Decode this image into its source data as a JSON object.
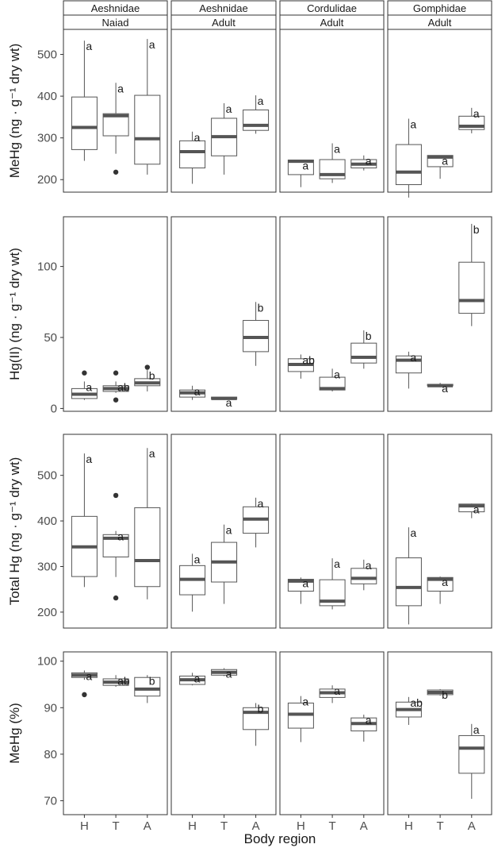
{
  "chart_data": {
    "type": "boxplot",
    "xlabel": "Body region",
    "x_categories": [
      "H",
      "T",
      "A"
    ],
    "facets": [
      {
        "strip_top": "Aeshnidae",
        "strip_bottom": "Naiad"
      },
      {
        "strip_top": "Aeshnidae",
        "strip_bottom": "Adult"
      },
      {
        "strip_top": "Cordulidae",
        "strip_bottom": "Adult"
      },
      {
        "strip_top": "Gomphidae",
        "strip_bottom": "Adult"
      }
    ],
    "rows": [
      {
        "ylabel": "MeHg (ng · g⁻¹ dry wt)",
        "ylim": [
          170,
          560
        ],
        "yticks": [
          200,
          300,
          400,
          500
        ],
        "panels": [
          [
            {
              "min": 245,
              "q1": 272,
              "median": 325,
              "q3": 398,
              "max": 533,
              "outliers": [],
              "letter": "a"
            },
            {
              "min": 262,
              "q1": 305,
              "median": 353,
              "q3": 358,
              "max": 432,
              "outliers": [
                218
              ],
              "letter": "a"
            },
            {
              "min": 212,
              "q1": 237,
              "median": 298,
              "q3": 402,
              "max": 537,
              "outliers": [],
              "letter": "a"
            }
          ],
          [
            {
              "min": 190,
              "q1": 228,
              "median": 267,
              "q3": 293,
              "max": 315,
              "outliers": [],
              "letter": "a"
            },
            {
              "min": 212,
              "q1": 257,
              "median": 303,
              "q3": 347,
              "max": 383,
              "outliers": [],
              "letter": "a"
            },
            {
              "min": 310,
              "q1": 318,
              "median": 330,
              "q3": 367,
              "max": 402,
              "outliers": [],
              "letter": "a"
            }
          ],
          [
            {
              "min": 182,
              "q1": 212,
              "median": 244,
              "q3": 247,
              "max": 247,
              "outliers": [],
              "letter": "a"
            },
            {
              "min": 192,
              "q1": 202,
              "median": 212,
              "q3": 248,
              "max": 287,
              "outliers": [],
              "letter": "a"
            },
            {
              "min": 222,
              "q1": 228,
              "median": 237,
              "q3": 248,
              "max": 258,
              "outliers": [],
              "letter": "a"
            }
          ],
          [
            {
              "min": 157,
              "q1": 188,
              "median": 218,
              "q3": 284,
              "max": 346,
              "outliers": [],
              "letter": "a"
            },
            {
              "min": 202,
              "q1": 231,
              "median": 254,
              "q3": 258,
              "max": 258,
              "outliers": [],
              "letter": "a"
            },
            {
              "min": 311,
              "q1": 320,
              "median": 328,
              "q3": 352,
              "max": 372,
              "outliers": [],
              "letter": "a"
            }
          ]
        ]
      },
      {
        "ylabel": "Hg(II) (ng · g⁻¹ dry wt)",
        "ylim": [
          -2,
          135
        ],
        "yticks": [
          0,
          50,
          100
        ],
        "panels": [
          [
            {
              "min": 6,
              "q1": 7,
              "median": 10,
              "q3": 14,
              "max": 19,
              "outliers": [
                25
              ],
              "letter": "a"
            },
            {
              "min": 11,
              "q1": 12,
              "median": 14,
              "q3": 16,
              "max": 19,
              "outliers": [
                25,
                6
              ],
              "letter": "ab"
            },
            {
              "min": 12,
              "q1": 16,
              "median": 18,
              "q3": 21,
              "max": 27,
              "outliers": [
                29
              ],
              "letter": "b"
            }
          ],
          [
            {
              "min": 6,
              "q1": 8,
              "median": 11,
              "q3": 13,
              "max": 16,
              "outliers": [],
              "letter": "a"
            },
            {
              "min": 6,
              "q1": 6.5,
              "median": 7,
              "q3": 8,
              "max": 8,
              "outliers": [],
              "letter": "a"
            },
            {
              "min": 30,
              "q1": 40,
              "median": 50,
              "q3": 62,
              "max": 75,
              "outliers": [],
              "letter": "b"
            }
          ],
          [
            {
              "min": 21,
              "q1": 26,
              "median": 31,
              "q3": 35,
              "max": 38,
              "outliers": [],
              "letter": "ab"
            },
            {
              "min": 12,
              "q1": 13,
              "median": 14,
              "q3": 22,
              "max": 28,
              "outliers": [],
              "letter": "a"
            },
            {
              "min": 28,
              "q1": 32,
              "median": 36,
              "q3": 46,
              "max": 55,
              "outliers": [],
              "letter": "b"
            }
          ],
          [
            {
              "min": 14,
              "q1": 25,
              "median": 34,
              "q3": 37,
              "max": 40,
              "outliers": [],
              "letter": "a"
            },
            {
              "min": 15,
              "q1": 16,
              "median": 16,
              "q3": 17,
              "max": 18,
              "outliers": [],
              "letter": "a"
            },
            {
              "min": 58,
              "q1": 67,
              "median": 76,
              "q3": 103,
              "max": 130,
              "outliers": [],
              "letter": "b"
            }
          ]
        ]
      },
      {
        "ylabel": "Total Hg (ng · g⁻¹ dry wt)",
        "ylim": [
          165,
          590
        ],
        "yticks": [
          200,
          300,
          400,
          500
        ],
        "panels": [
          [
            {
              "min": 255,
              "q1": 278,
              "median": 343,
              "q3": 410,
              "max": 548,
              "outliers": [],
              "letter": "a"
            },
            {
              "min": 277,
              "q1": 321,
              "median": 362,
              "q3": 370,
              "max": 378,
              "outliers": [
                456,
                231
              ],
              "letter": "a"
            },
            {
              "min": 228,
              "q1": 256,
              "median": 313,
              "q3": 429,
              "max": 560,
              "outliers": [],
              "letter": "a"
            }
          ],
          [
            {
              "min": 201,
              "q1": 238,
              "median": 272,
              "q3": 302,
              "max": 328,
              "outliers": [],
              "letter": "a"
            },
            {
              "min": 218,
              "q1": 266,
              "median": 310,
              "q3": 353,
              "max": 392,
              "outliers": [],
              "letter": "a"
            },
            {
              "min": 342,
              "q1": 373,
              "median": 404,
              "q3": 431,
              "max": 451,
              "outliers": [],
              "letter": "a"
            }
          ],
          [
            {
              "min": 218,
              "q1": 246,
              "median": 268,
              "q3": 272,
              "max": 276,
              "outliers": [],
              "letter": "a"
            },
            {
              "min": 206,
              "q1": 214,
              "median": 224,
              "q3": 271,
              "max": 318,
              "outliers": [],
              "letter": "a"
            },
            {
              "min": 248,
              "q1": 262,
              "median": 274,
              "q3": 296,
              "max": 315,
              "outliers": [],
              "letter": "a"
            }
          ],
          [
            {
              "min": 173,
              "q1": 214,
              "median": 254,
              "q3": 319,
              "max": 386,
              "outliers": [],
              "letter": "a"
            },
            {
              "min": 218,
              "q1": 246,
              "median": 272,
              "q3": 276,
              "max": 278,
              "outliers": [],
              "letter": "a"
            },
            {
              "min": 406,
              "q1": 420,
              "median": 433,
              "q3": 437,
              "max": 438,
              "outliers": [],
              "letter": "a"
            }
          ]
        ]
      },
      {
        "ylabel": "MeHg (%)",
        "ylim": [
          67,
          102
        ],
        "yticks": [
          70,
          80,
          90,
          100
        ],
        "panels": [
          [
            {
              "min": 96,
              "q1": 96.5,
              "median": 97,
              "q3": 97.5,
              "max": 98,
              "outliers": [
                92.8
              ],
              "letter": "a"
            },
            {
              "min": 94.5,
              "q1": 94.8,
              "median": 95.5,
              "q3": 96.2,
              "max": 97,
              "outliers": [],
              "letter": "ab"
            },
            {
              "min": 91,
              "q1": 92.5,
              "median": 94,
              "q3": 96.5,
              "max": 97,
              "outliers": [],
              "letter": "b"
            }
          ],
          [
            {
              "min": 94.8,
              "q1": 95,
              "median": 96,
              "q3": 96.8,
              "max": 97.5,
              "outliers": [],
              "letter": "a"
            },
            {
              "min": 96.8,
              "q1": 97,
              "median": 97.6,
              "q3": 98.2,
              "max": 98.5,
              "outliers": [],
              "letter": "a"
            },
            {
              "min": 81.8,
              "q1": 85.3,
              "median": 89,
              "q3": 90,
              "max": 91,
              "outliers": [],
              "letter": "b"
            }
          ],
          [
            {
              "min": 82.6,
              "q1": 85.6,
              "median": 88.6,
              "q3": 91,
              "max": 92.5,
              "outliers": [],
              "letter": "a"
            },
            {
              "min": 91,
              "q1": 92.2,
              "median": 93.2,
              "q3": 94,
              "max": 94.8,
              "outliers": [],
              "letter": "a"
            },
            {
              "min": 82.7,
              "q1": 85,
              "median": 86.6,
              "q3": 87.8,
              "max": 88.5,
              "outliers": [],
              "letter": "a"
            }
          ],
          [
            {
              "min": 86.3,
              "q1": 88,
              "median": 89.6,
              "q3": 91.2,
              "max": 92.3,
              "outliers": [],
              "letter": "ab"
            },
            {
              "min": 92.6,
              "q1": 92.8,
              "median": 93.3,
              "q3": 93.8,
              "max": 94,
              "outliers": [],
              "letter": "b"
            },
            {
              "min": 70.4,
              "q1": 75.9,
              "median": 81.3,
              "q3": 84,
              "max": 86.5,
              "outliers": [],
              "letter": "a"
            }
          ]
        ]
      }
    ]
  }
}
